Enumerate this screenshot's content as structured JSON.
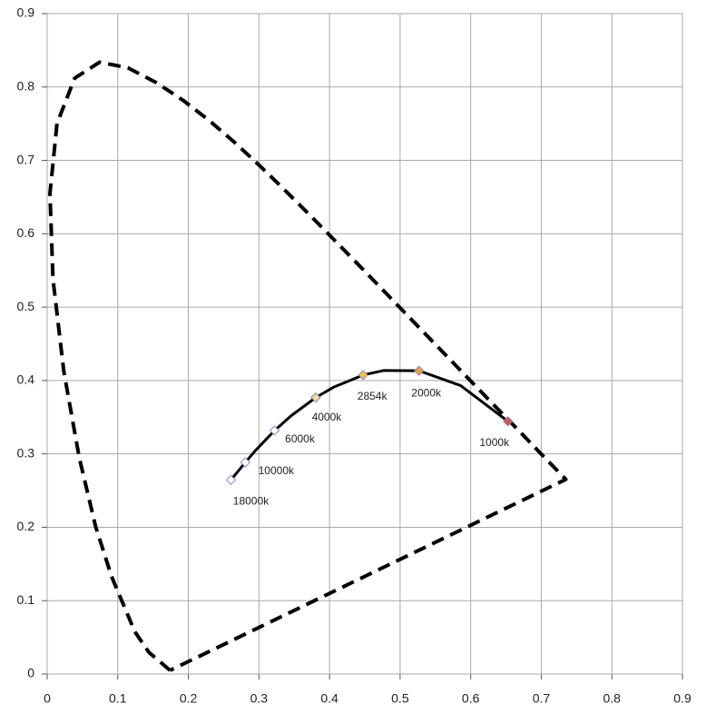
{
  "chart_data": {
    "type": "scatter",
    "xlim": [
      0,
      0.9
    ],
    "ylim": [
      0,
      0.9
    ],
    "xticks": [
      0,
      0.1,
      0.2,
      0.3,
      0.4,
      0.5,
      0.6,
      0.7,
      0.8,
      0.9
    ],
    "yticks": [
      0,
      0.1,
      0.2,
      0.3,
      0.4,
      0.5,
      0.6,
      0.7,
      0.8,
      0.9
    ],
    "grid": true,
    "series": [
      {
        "type": "line",
        "dashed": true,
        "color": "#000000",
        "x": [
          0.1741,
          0.144,
          0.1241,
          0.0913,
          0.0687,
          0.0454,
          0.0235,
          0.0082,
          0.0039,
          0.0139,
          0.0389,
          0.0743,
          0.1142,
          0.1547,
          0.1929,
          0.2296,
          0.2658,
          0.3016,
          0.3373,
          0.3731,
          0.4087,
          0.4441,
          0.4788,
          0.5125,
          0.5448,
          0.5752,
          0.6029,
          0.627,
          0.6482,
          0.6658,
          0.6915,
          0.7347,
          0.1741
        ],
        "y": [
          0.005,
          0.0297,
          0.0578,
          0.1327,
          0.2007,
          0.295,
          0.4127,
          0.5384,
          0.6548,
          0.7502,
          0.812,
          0.8338,
          0.8262,
          0.8059,
          0.7816,
          0.7543,
          0.7243,
          0.6923,
          0.6589,
          0.6245,
          0.5896,
          0.5547,
          0.5202,
          0.4866,
          0.4544,
          0.4242,
          0.3965,
          0.3725,
          0.3514,
          0.334,
          0.3083,
          0.2653,
          0.005
        ]
      },
      {
        "type": "line",
        "dashed": false,
        "color": "#000000",
        "x": [
          0.6528,
          0.5857,
          0.5267,
          0.477,
          0.4476,
          0.4053,
          0.3805,
          0.3451,
          0.3221,
          0.2952,
          0.2807,
          0.2603
        ],
        "y": [
          0.3444,
          0.3931,
          0.4133,
          0.4137,
          0.4075,
          0.3907,
          0.3768,
          0.3516,
          0.3318,
          0.3048,
          0.2884,
          0.2645
        ]
      },
      {
        "type": "markers",
        "x": [
          0.6528,
          0.5267,
          0.4476,
          0.3805,
          0.3221,
          0.2807,
          0.2603
        ],
        "y": [
          0.3444,
          0.4133,
          0.4075,
          0.3768,
          0.3318,
          0.2884,
          0.2645
        ],
        "labels": [
          "1000k",
          "2000k",
          "2854k",
          "4000k",
          "6000k",
          "10000k",
          "18000k"
        ],
        "colors": [
          "#d9534f",
          "#f0a030",
          "#f5c040",
          "#f6dc9a",
          "#ffffff",
          "#ffffff",
          "#ffffff"
        ]
      }
    ]
  }
}
